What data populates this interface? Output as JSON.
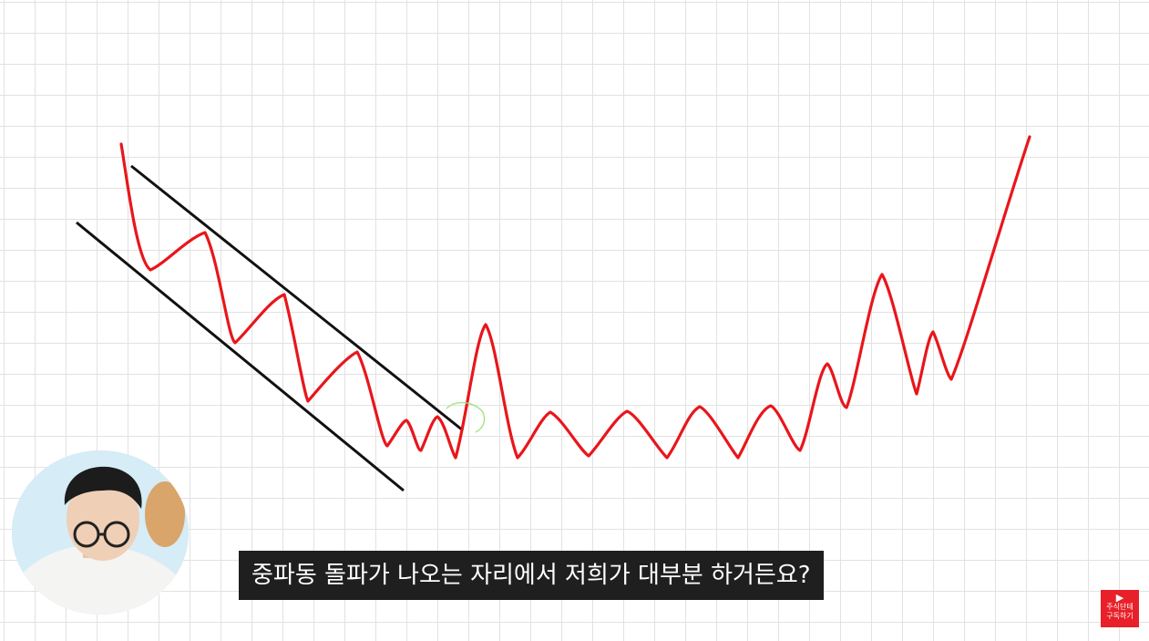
{
  "subtitle": "중파동 돌파가 나오는 자리에서 저희가 대부분 하거든요?",
  "badge": {
    "line1": "주식단테",
    "line2": "구독하기",
    "icon": "play-icon"
  },
  "colors": {
    "price_line": "#e8161b",
    "trendline": "#111111",
    "highlight": "#9be37a",
    "grid": "#e2e2e2",
    "badge": "#e8202a"
  }
}
